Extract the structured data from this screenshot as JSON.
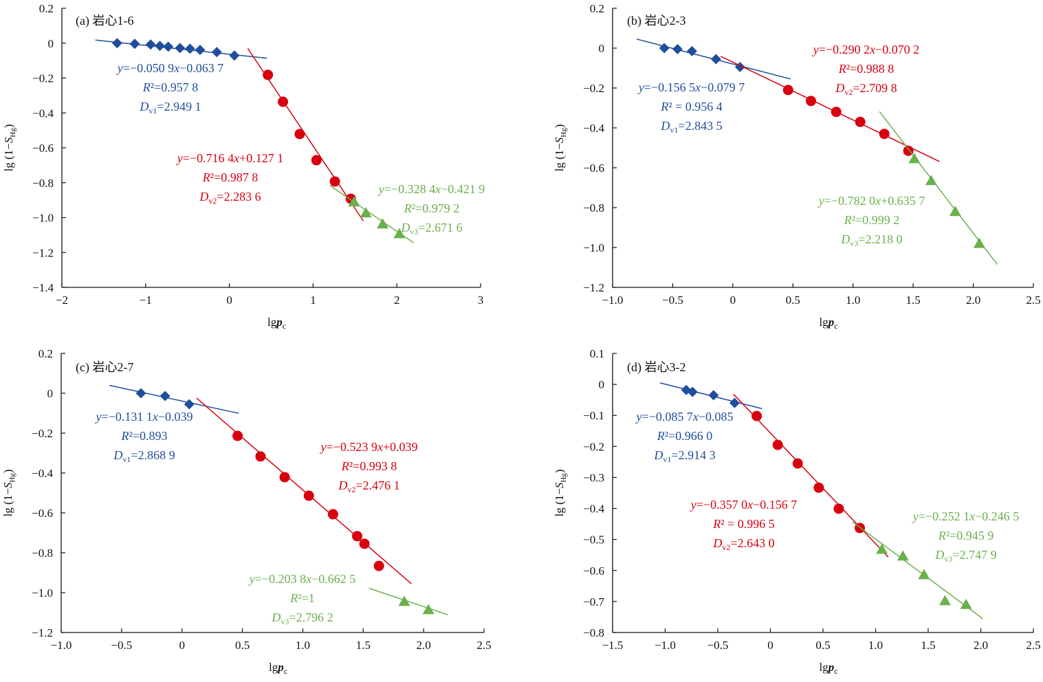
{
  "colors": {
    "blue": "#1f4e9c",
    "red": "#d7000f",
    "green": "#6ab04c",
    "axis": "#111111"
  },
  "chart_data": [
    {
      "type": "scatter",
      "title": "(a) 岩心1-6",
      "xlabel": "lgpc",
      "ylabel": "lg(1−SHg)",
      "xlim": [
        -2,
        3
      ],
      "ylim": [
        -1.4,
        0.2
      ],
      "xticks": [
        -2,
        -1,
        0,
        1,
        2,
        3
      ],
      "xtick_labels": [
        "−2",
        "−1",
        "0",
        "1",
        "2",
        "3"
      ],
      "yticks": [
        0.2,
        0,
        -0.2,
        -0.4,
        -0.6,
        -0.8,
        -1.0,
        -1.2,
        -1.4
      ],
      "ytick_labels": [
        "0.2",
        "0",
        "−0.2",
        "−0.4",
        "−0.6",
        "−0.8",
        "−1.0",
        "−1.2",
        "−1.4"
      ],
      "series": [
        {
          "name": "segment-1",
          "color": "blue",
          "marker": "diamond",
          "x": [
            -1.34,
            -1.13,
            -0.94,
            -0.83,
            -0.73,
            -0.59,
            -0.47,
            -0.35,
            -0.15,
            0.06
          ],
          "y": [
            0.0,
            -0.004,
            -0.008,
            -0.016,
            -0.02,
            -0.028,
            -0.032,
            -0.039,
            -0.051,
            -0.071
          ],
          "fit": {
            "slope": -0.0509,
            "intercept": -0.0637,
            "x_range": [
              -1.6,
              0.45
            ]
          },
          "annotation": [
            "y=−0.050 9x−0.063 7",
            "R²=0.957 8",
            "Dv1=2.949 1"
          ]
        },
        {
          "name": "segment-2",
          "color": "red",
          "marker": "circle",
          "x": [
            0.46,
            0.64,
            0.84,
            1.04,
            1.26,
            1.45
          ],
          "y": [
            -0.182,
            -0.336,
            -0.521,
            -0.671,
            -0.793,
            -0.892
          ],
          "fit": {
            "slope": -0.7164,
            "intercept": 0.1271,
            "x_range": [
              0.22,
              1.6
            ]
          },
          "annotation": [
            "y=−0.716 4x+0.127 1",
            "R²=0.987 8",
            "Dv2=2.283 6"
          ]
        },
        {
          "name": "segment-3",
          "color": "green",
          "marker": "triangle",
          "x": [
            1.49,
            1.63,
            1.83,
            2.03
          ],
          "y": [
            -0.911,
            -0.974,
            -1.037,
            -1.093
          ],
          "fit": {
            "slope": -0.3284,
            "intercept": -0.4219,
            "x_range": [
              1.2,
              2.2
            ]
          },
          "annotation": [
            "y=−0.328 4x−0.421 9",
            "R²=0.979 2",
            "Dv3=2.671 6"
          ]
        }
      ]
    },
    {
      "type": "scatter",
      "title": "(b) 岩心2-3",
      "xlabel": "lgpc",
      "ylabel": "lg(1−SHg)",
      "xlim": [
        -1.0,
        2.5
      ],
      "ylim": [
        -1.2,
        0.2
      ],
      "xticks": [
        -1.0,
        -0.5,
        0,
        0.5,
        1.0,
        1.5,
        2.0,
        2.5
      ],
      "xtick_labels": [
        "−1.0",
        "−0.5",
        "0",
        "0.5",
        "1.0",
        "1.5",
        "2.0",
        "2.5"
      ],
      "yticks": [
        0.2,
        0,
        -0.2,
        -0.4,
        -0.6,
        -0.8,
        -1.0,
        -1.2
      ],
      "ytick_labels": [
        "0.2",
        "0",
        "−0.2",
        "−0.4",
        "−0.6",
        "−0.8",
        "−1.0",
        "−1.2"
      ],
      "series": [
        {
          "name": "segment-1",
          "color": "blue",
          "marker": "diamond",
          "x": [
            -0.57,
            -0.46,
            -0.34,
            -0.14,
            0.06
          ],
          "y": [
            0.0,
            -0.005,
            -0.015,
            -0.055,
            -0.095
          ],
          "fit": {
            "slope": -0.1565,
            "intercept": -0.0797,
            "x_range": [
              -0.8,
              0.48
            ]
          },
          "annotation": [
            "y=−0.156 5x−0.079 7",
            "R² = 0.956 4",
            "Dv1=2.843 5"
          ]
        },
        {
          "name": "segment-2",
          "color": "red",
          "marker": "circle",
          "x": [
            0.46,
            0.65,
            0.86,
            1.06,
            1.26,
            1.46
          ],
          "y": [
            -0.21,
            -0.265,
            -0.32,
            -0.37,
            -0.43,
            -0.515
          ],
          "fit": {
            "slope": -0.2902,
            "intercept": -0.0702,
            "x_range": [
              -0.1,
              1.72
            ]
          },
          "annotation": [
            "y=−0.290 2x−0.070 2",
            "R²=0.988 8",
            "Dv2=2.709 8"
          ]
        },
        {
          "name": "segment-3",
          "color": "green",
          "marker": "triangle",
          "x": [
            1.51,
            1.65,
            1.85,
            2.05
          ],
          "y": [
            -0.555,
            -0.665,
            -0.82,
            -0.98
          ],
          "fit": {
            "slope": -0.782,
            "intercept": 0.6357,
            "x_range": [
              1.22,
              2.2
            ]
          },
          "annotation": [
            "y=−0.782 0x+0.635 7",
            "R²=0.999 2",
            "Dv3=2.218 0"
          ]
        }
      ]
    },
    {
      "type": "scatter",
      "title": "(c) 岩心2-7",
      "xlabel": "lgpc",
      "ylabel": "lg(1−SHg)",
      "xlim": [
        -1.0,
        2.5
      ],
      "ylim": [
        -1.2,
        0.2
      ],
      "xticks": [
        -1.0,
        -0.5,
        0,
        0.5,
        1.0,
        1.5,
        2.0,
        2.5
      ],
      "xtick_labels": [
        "−1.0",
        "−0.5",
        "0",
        "0.5",
        "1.0",
        "1.5",
        "2.0",
        "2.5"
      ],
      "yticks": [
        0.2,
        0,
        -0.2,
        -0.4,
        -0.6,
        -0.8,
        -1.0,
        -1.2
      ],
      "ytick_labels": [
        "0.2",
        "0",
        "−0.2",
        "−0.4",
        "−0.6",
        "−0.8",
        "−1.0",
        "−1.2"
      ],
      "series": [
        {
          "name": "segment-1",
          "color": "blue",
          "marker": "diamond",
          "x": [
            -0.34,
            -0.14,
            0.06
          ],
          "y": [
            0.0,
            -0.014,
            -0.055
          ],
          "fit": {
            "slope": -0.1311,
            "intercept": -0.039,
            "x_range": [
              -0.6,
              0.47
            ]
          },
          "annotation": [
            "y=−0.131 1x−0.039",
            "R²=0.893",
            "Dv1=2.868 9"
          ]
        },
        {
          "name": "segment-2",
          "color": "red",
          "marker": "circle",
          "x": [
            0.46,
            0.65,
            0.85,
            1.05,
            1.25,
            1.45,
            1.51,
            1.63
          ],
          "y": [
            -0.214,
            -0.317,
            -0.421,
            -0.514,
            -0.607,
            -0.717,
            -0.755,
            -0.866
          ],
          "fit": {
            "slope": -0.5239,
            "intercept": 0.039,
            "x_range": [
              0.12,
              1.9
            ]
          },
          "annotation": [
            "y=−0.523 9x+0.039",
            "R²=0.993 8",
            "Dv2=2.476 1"
          ]
        },
        {
          "name": "segment-3",
          "color": "green",
          "marker": "triangle",
          "x": [
            1.84,
            2.04
          ],
          "y": [
            -1.045,
            -1.086
          ],
          "fit": {
            "slope": -0.2038,
            "intercept": -0.6625,
            "x_range": [
              1.55,
              2.2
            ]
          },
          "annotation": [
            "y=−0.203 8x−0.662 5",
            "R²=1",
            "Dv3=2.796 2"
          ]
        }
      ]
    },
    {
      "type": "scatter",
      "title": "(d) 岩心3-2",
      "xlabel": "lgpc",
      "ylabel": "lg(1−SHg)",
      "xlim": [
        -1.5,
        2.5
      ],
      "ylim": [
        -0.8,
        0.1
      ],
      "xticks": [
        -1.5,
        -1.0,
        -0.5,
        0,
        0.5,
        1.0,
        1.5,
        2.0,
        2.5
      ],
      "xtick_labels": [
        "−1.5",
        "−1.0",
        "−0.5",
        "0",
        "0.5",
        "1.0",
        "1.5",
        "2.0",
        "2.5"
      ],
      "yticks": [
        0.1,
        0,
        -0.1,
        -0.2,
        -0.3,
        -0.4,
        -0.5,
        -0.6,
        -0.7,
        -0.8
      ],
      "ytick_labels": [
        "0.1",
        "0",
        "−0.1",
        "−0.2",
        "−0.3",
        "−0.4",
        "−0.5",
        "−0.6",
        "−0.7",
        "−0.8"
      ],
      "series": [
        {
          "name": "segment-1",
          "color": "blue",
          "marker": "diamond",
          "x": [
            -0.8,
            -0.74,
            -0.54,
            -0.34
          ],
          "y": [
            -0.018,
            -0.024,
            -0.035,
            -0.06
          ],
          "fit": {
            "slope": -0.0857,
            "intercept": -0.085,
            "x_range": [
              -1.05,
              -0.08
            ]
          },
          "annotation": [
            "y=−0.085 7x−0.085",
            "R²=0.966 0",
            "Dv1=2.914 3"
          ]
        },
        {
          "name": "segment-2",
          "color": "red",
          "marker": "circle",
          "x": [
            -0.13,
            0.07,
            0.26,
            0.46,
            0.65,
            0.85
          ],
          "y": [
            -0.102,
            -0.195,
            -0.255,
            -0.333,
            -0.401,
            -0.463
          ],
          "fit": {
            "slope": -0.357,
            "intercept": -0.1567,
            "x_range": [
              -0.35,
              1.12
            ]
          },
          "annotation": [
            "y=−0.357 0x−0.156 7",
            "R² = 0.996 5",
            "Dv2=2.643 0"
          ]
        },
        {
          "name": "segment-3",
          "color": "green",
          "marker": "triangle",
          "x": [
            1.06,
            1.26,
            1.46,
            1.66,
            1.86
          ],
          "y": [
            -0.532,
            -0.554,
            -0.614,
            -0.698,
            -0.71
          ],
          "fit": {
            "slope": -0.2521,
            "intercept": -0.2465,
            "x_range": [
              0.78,
              2.02
            ]
          },
          "annotation": [
            "y=−0.252 1x−0.246 5",
            "R²=0.945 9",
            "Dv3=2.747 9"
          ]
        }
      ]
    }
  ]
}
